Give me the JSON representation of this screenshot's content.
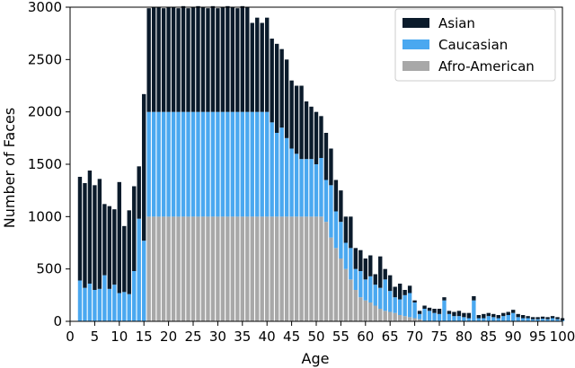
{
  "chart_data": {
    "type": "bar",
    "stacked": true,
    "xlabel": "Age",
    "ylabel": "Number of Faces",
    "xlim": [
      0,
      100
    ],
    "ylim": [
      0,
      3000
    ],
    "xticks": [
      "0",
      "5",
      "10",
      "15",
      "20",
      "25",
      "30",
      "35",
      "40",
      "45",
      "50",
      "55",
      "60",
      "65",
      "70",
      "75",
      "80",
      "85",
      "90",
      "95",
      "100"
    ],
    "yticks": [
      "0",
      "500",
      "1000",
      "1500",
      "2000",
      "2500",
      "3000"
    ],
    "legend_position": "top-right",
    "categories": [
      2,
      3,
      4,
      5,
      6,
      7,
      8,
      9,
      10,
      11,
      12,
      13,
      14,
      15,
      16,
      17,
      18,
      19,
      20,
      21,
      22,
      23,
      24,
      25,
      26,
      27,
      28,
      29,
      30,
      31,
      32,
      33,
      34,
      35,
      36,
      37,
      38,
      39,
      40,
      41,
      42,
      43,
      44,
      45,
      46,
      47,
      48,
      49,
      50,
      51,
      52,
      53,
      54,
      55,
      56,
      57,
      58,
      59,
      60,
      61,
      62,
      63,
      64,
      65,
      66,
      67,
      68,
      69,
      70,
      71,
      72,
      73,
      74,
      75,
      76,
      77,
      78,
      79,
      80,
      81,
      82,
      83,
      84,
      85,
      86,
      87,
      88,
      89,
      90,
      91,
      92,
      93,
      94,
      95,
      96,
      97,
      98,
      99,
      100
    ],
    "series": [
      {
        "name": "Afro-American",
        "color": "#a8a8a8",
        "values": [
          0,
          0,
          0,
          0,
          0,
          0,
          0,
          0,
          0,
          0,
          0,
          0,
          0,
          0,
          1000,
          1000,
          1000,
          1000,
          1000,
          1000,
          1000,
          1000,
          1000,
          1000,
          1000,
          1000,
          1000,
          1000,
          1000,
          1000,
          1000,
          1000,
          1000,
          1000,
          1000,
          1000,
          1000,
          1000,
          1000,
          1000,
          1000,
          1000,
          1000,
          1000,
          1000,
          1000,
          1000,
          1000,
          1000,
          1000,
          950,
          800,
          700,
          600,
          500,
          400,
          300,
          230,
          200,
          180,
          150,
          120,
          100,
          90,
          80,
          60,
          50,
          40,
          30,
          20,
          0,
          0,
          0,
          0,
          0,
          0,
          0,
          0,
          0,
          0,
          0,
          0,
          0,
          0,
          0,
          0,
          0,
          0,
          0,
          0,
          0,
          0,
          0,
          0,
          0,
          0,
          0,
          0,
          0
        ]
      },
      {
        "name": "Caucasian",
        "color": "#4aa8f0",
        "values": [
          390,
          320,
          360,
          300,
          310,
          440,
          310,
          350,
          270,
          280,
          260,
          480,
          980,
          770,
          1000,
          1000,
          1000,
          1000,
          1000,
          1000,
          1000,
          1000,
          1000,
          1000,
          1000,
          1000,
          1000,
          1000,
          1000,
          1000,
          1000,
          1000,
          1000,
          1000,
          1000,
          1000,
          1000,
          1000,
          1000,
          900,
          800,
          850,
          750,
          650,
          600,
          550,
          550,
          550,
          500,
          560,
          400,
          500,
          350,
          350,
          250,
          300,
          200,
          250,
          200,
          250,
          200,
          200,
          300,
          200,
          150,
          150,
          200,
          230,
          150,
          50,
          120,
          100,
          80,
          70,
          200,
          70,
          50,
          50,
          40,
          30,
          200,
          30,
          30,
          50,
          40,
          30,
          50,
          60,
          80,
          40,
          30,
          30,
          20,
          20,
          25,
          20,
          30,
          20,
          10
        ]
      },
      {
        "name": "Asian",
        "color": "#0b1b2b",
        "values": [
          990,
          1000,
          1080,
          1000,
          1050,
          680,
          790,
          720,
          1060,
          630,
          800,
          810,
          500,
          1400,
          990,
          1000,
          1000,
          990,
          1000,
          1000,
          990,
          1010,
          990,
          1000,
          1010,
          1000,
          990,
          1010,
          990,
          1000,
          1010,
          1000,
          990,
          1010,
          1000,
          850,
          900,
          850,
          900,
          800,
          850,
          750,
          750,
          650,
          650,
          700,
          550,
          500,
          500,
          400,
          450,
          350,
          300,
          300,
          250,
          300,
          200,
          200,
          200,
          200,
          100,
          300,
          100,
          150,
          100,
          150,
          50,
          70,
          20,
          30,
          30,
          30,
          40,
          50,
          30,
          30,
          40,
          50,
          40,
          50,
          40,
          30,
          40,
          30,
          30,
          30,
          30,
          30,
          30,
          30,
          30,
          20,
          20,
          20,
          20,
          20,
          20,
          20,
          20
        ]
      }
    ]
  }
}
